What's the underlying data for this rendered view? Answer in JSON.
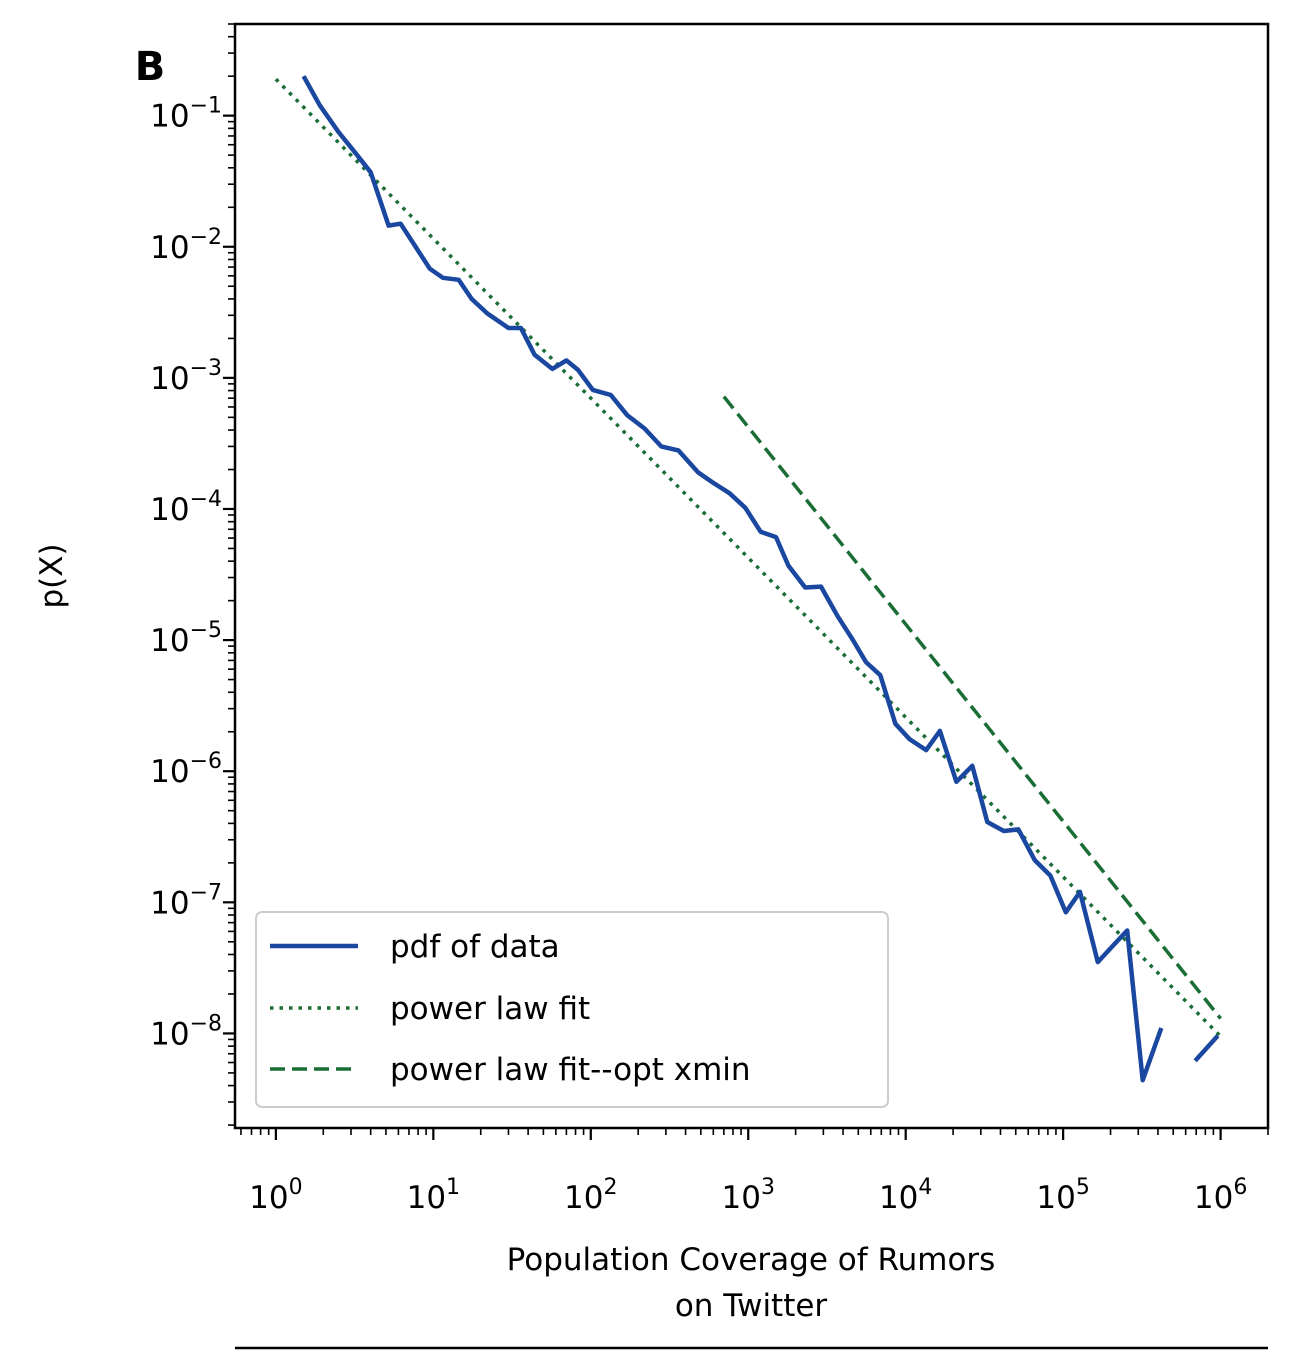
{
  "panel_label": "B",
  "chart_data": {
    "type": "line",
    "xlabel_line1": "Population Coverage of Rumors",
    "xlabel_line2": "on Twitter",
    "ylabel": "p(X)",
    "xscale": "log",
    "yscale": "log",
    "xlim": [
      0.55,
      2000000
    ],
    "ylim": [
      1.9e-09,
      0.5
    ],
    "x_ticks": [
      {
        "value": 1,
        "base": "10",
        "exp": "0"
      },
      {
        "value": 10,
        "base": "10",
        "exp": "1"
      },
      {
        "value": 100,
        "base": "10",
        "exp": "2"
      },
      {
        "value": 1000,
        "base": "10",
        "exp": "3"
      },
      {
        "value": 10000,
        "base": "10",
        "exp": "4"
      },
      {
        "value": 100000,
        "base": "10",
        "exp": "5"
      },
      {
        "value": 1000000,
        "base": "10",
        "exp": "6"
      }
    ],
    "y_ticks": [
      {
        "value": 0.1,
        "base": "10",
        "exp": "−1"
      },
      {
        "value": 0.01,
        "base": "10",
        "exp": "−2"
      },
      {
        "value": 0.001,
        "base": "10",
        "exp": "−3"
      },
      {
        "value": 0.0001,
        "base": "10",
        "exp": "−4"
      },
      {
        "value": 1e-05,
        "base": "10",
        "exp": "−5"
      },
      {
        "value": 1e-06,
        "base": "10",
        "exp": "−6"
      },
      {
        "value": 1e-07,
        "base": "10",
        "exp": "−7"
      },
      {
        "value": 1e-08,
        "base": "10",
        "exp": "−8"
      }
    ],
    "legend_position": "lower-left",
    "series": [
      {
        "name": "pdf of data",
        "color": "#1a47a0",
        "style": "solid",
        "segments": [
          [
            [
              1.5,
              0.2
            ],
            [
              1.9,
              0.12
            ],
            [
              2.5,
              0.075
            ],
            [
              3.2,
              0.052
            ],
            [
              4.0,
              0.037
            ],
            [
              5.2,
              0.0145
            ],
            [
              6.2,
              0.015
            ],
            [
              7.8,
              0.0098
            ],
            [
              9.5,
              0.0068
            ],
            [
              11.5,
              0.0058
            ],
            [
              14.5,
              0.0056
            ],
            [
              17.5,
              0.004
            ],
            [
              22,
              0.0031
            ],
            [
              30,
              0.0024
            ],
            [
              36,
              0.0024
            ],
            [
              44,
              0.0015
            ],
            [
              57,
              0.00117
            ],
            [
              70,
              0.00136
            ],
            [
              83,
              0.00115
            ],
            [
              103,
              0.00081
            ],
            [
              134,
              0.00074
            ],
            [
              170,
              0.00052
            ],
            [
              220,
              0.00041
            ],
            [
              280,
              0.0003
            ],
            [
              360,
              0.00028
            ],
            [
              480,
              0.00019
            ],
            [
              600,
              0.000158
            ],
            [
              760,
              0.000132
            ],
            [
              960,
              0.000102
            ],
            [
              1200,
              6.7e-05
            ],
            [
              1500,
              6.1e-05
            ],
            [
              1800,
              3.7e-05
            ],
            [
              2300,
              2.52e-05
            ],
            [
              2900,
              2.56e-05
            ],
            [
              3700,
              1.52e-05
            ],
            [
              4600,
              1.01e-05
            ],
            [
              5600,
              6.8e-06
            ],
            [
              6900,
              5.4e-06
            ],
            [
              8600,
              2.3e-06
            ],
            [
              10600,
              1.75e-06
            ],
            [
              13500,
              1.45e-06
            ],
            [
              16500,
              2.03e-06
            ],
            [
              21000,
              8.3e-07
            ],
            [
              26500,
              1.1e-06
            ],
            [
              33000,
              4.1e-07
            ],
            [
              42000,
              3.5e-07
            ],
            [
              52000,
              3.6e-07
            ],
            [
              66000,
              2.1e-07
            ],
            [
              83000,
              1.6e-07
            ],
            [
              104000,
              8.4e-08
            ],
            [
              128000,
              1.2e-07
            ],
            [
              166000,
              3.5e-08
            ],
            [
              205000,
              4.6e-08
            ],
            [
              255000,
              6.1e-08
            ],
            [
              320000,
              4.4e-09
            ],
            [
              420000,
              1.1e-08
            ]
          ],
          [
            [
              690000,
              6.2e-09
            ],
            [
              960000,
              9.6e-09
            ]
          ]
        ]
      },
      {
        "name": "power law fit",
        "color": "#1a6e35",
        "style": "dotted",
        "segments": [
          [
            [
              1.0,
              0.19
            ],
            [
              1000000,
              9.5e-09
            ]
          ]
        ]
      },
      {
        "name": "power law fit--opt xmin",
        "color": "#1a6e35",
        "style": "dashed",
        "segments": [
          [
            [
              700,
              0.00072
            ],
            [
              1000000,
              1.3e-08
            ]
          ]
        ]
      }
    ]
  }
}
